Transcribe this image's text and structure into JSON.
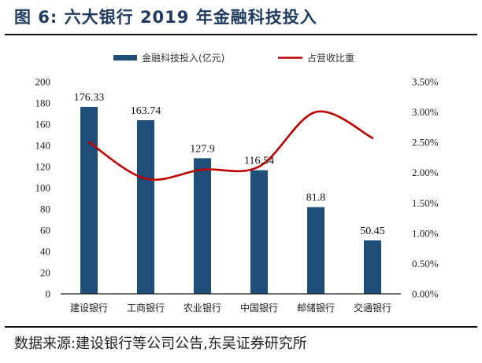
{
  "header": {
    "title": "图 6:  六大银行 2019 年金融科技投入"
  },
  "footer": {
    "source": "数据来源:建设银行等公司公告,东吴证券研究所"
  },
  "colors": {
    "bar": "#1f4e79",
    "line": "#c00000",
    "title": "#1f3a5f"
  },
  "chart_data": {
    "type": "bar+line",
    "title": "六大银行 2019 年金融科技投入",
    "categories": [
      "建设银行",
      "工商银行",
      "农业银行",
      "中国银行",
      "邮储银行",
      "交通银行"
    ],
    "series": [
      {
        "name": "金融科技投入(亿元)",
        "type": "bar",
        "axis": "left",
        "values": [
          176.33,
          163.74,
          127.9,
          116.54,
          81.8,
          50.45
        ],
        "labels": [
          "176.33",
          "163.74",
          "127.9",
          "116.54",
          "81.8",
          "50.45"
        ]
      },
      {
        "name": "占营收比重",
        "type": "line",
        "axis": "right",
        "smooth": true,
        "values": [
          2.5,
          1.9,
          2.05,
          2.1,
          3.0,
          2.57
        ]
      }
    ],
    "legend": {
      "position": "top",
      "entries": [
        "金融科技投入(亿元)",
        "占营收比重"
      ]
    },
    "left_axis": {
      "ylim": [
        0,
        200
      ],
      "ticks": [
        "0",
        "20",
        "40",
        "60",
        "80",
        "100",
        "120",
        "140",
        "160",
        "180",
        "200"
      ]
    },
    "right_axis": {
      "ylim": [
        0,
        3.5
      ],
      "ticks": [
        "0.00%",
        "0.50%",
        "1.00%",
        "1.50%",
        "2.00%",
        "2.50%",
        "3.00%",
        "3.50%"
      ]
    },
    "grid": false
  }
}
